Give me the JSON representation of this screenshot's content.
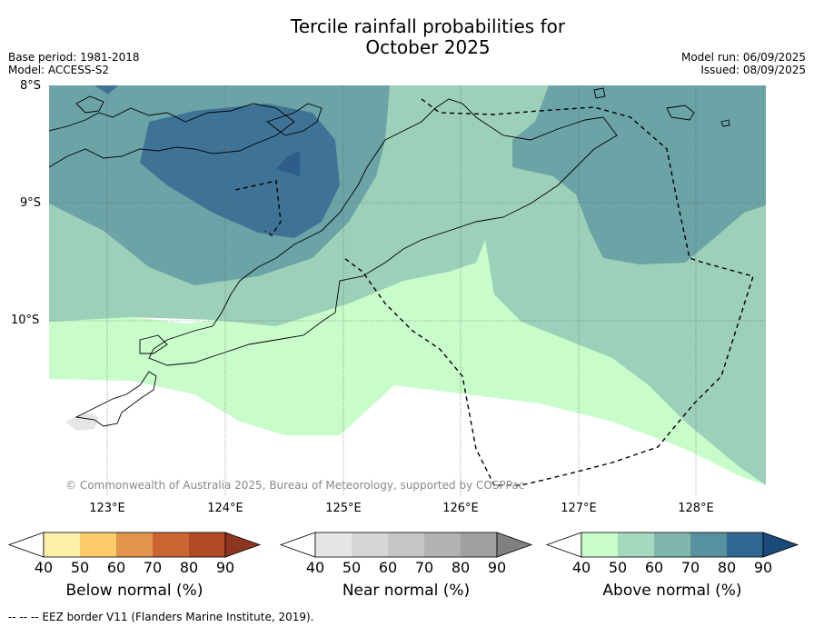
{
  "title_line1": "Tercile rainfall probabilities for",
  "title_line2": "October 2025",
  "header": {
    "base_period": "Base period: 1981-2018",
    "model": "Model: ACCESS-S2",
    "model_run": "Model run: 06/09/2025",
    "issued": "Issued: 08/09/2025"
  },
  "map": {
    "lat_labels": [
      "8°S",
      "9°S",
      "10°S"
    ],
    "lon_labels": [
      "123°E",
      "124°E",
      "125°E",
      "126°E",
      "127°E",
      "128°E"
    ],
    "copyright": "© Commonwealth of Australia 2025, Bureau of Meteorology, supported by COSPPac"
  },
  "colorbars": [
    {
      "label": "Below normal (%)",
      "ticks": [
        "40",
        "50",
        "60",
        "70",
        "80",
        "90"
      ],
      "colors": [
        "#fff0a8",
        "#fecb6a",
        "#e1944b",
        "#cc6534",
        "#b24a28",
        "#8c3520"
      ]
    },
    {
      "label": "Near normal (%)",
      "ticks": [
        "40",
        "50",
        "60",
        "70",
        "80",
        "90"
      ],
      "colors": [
        "#e6e6e6",
        "#d6d6d6",
        "#c6c6c6",
        "#b2b2b2",
        "#9f9f9f",
        "#808080"
      ]
    },
    {
      "label": "Above normal (%)",
      "ticks": [
        "40",
        "50",
        "60",
        "70",
        "80",
        "90"
      ],
      "colors": [
        "#c9fccb",
        "#a4d9bd",
        "#80b7ad",
        "#58929e",
        "#306792",
        "#1a4a7a"
      ]
    }
  ],
  "footer": "--  --  -- EEZ border V11 (Flanders Marine Institute, 2019).",
  "legend_colors": {
    "above_40_50": "#c9fccb",
    "above_50_60": "#9dd0b9",
    "above_60_70": "#6ba3a6",
    "above_70_80": "#3f7395",
    "above_80_90": "#2f5d8a"
  }
}
